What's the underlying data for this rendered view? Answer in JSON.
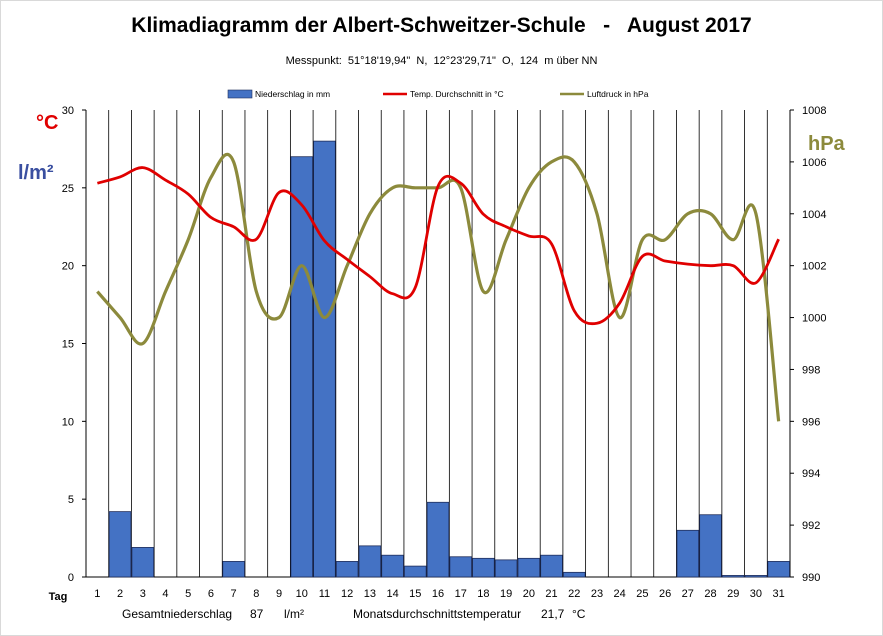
{
  "page": {
    "title": "Klimadiagramm der Albert-Schweitzer-Schule   -   August 2017",
    "subtitle": "Messpunkt:  51°18'19,94\"  N,  12°23'29,71\"  O,  124  m über NN",
    "unit_left_temp": "°C",
    "unit_left_precip": "l/m²",
    "unit_right": "hPa",
    "x_axis_label": "Tag",
    "footer_precip_label": "Gesamtniederschlag",
    "footer_precip_value": "87",
    "footer_precip_unit": "l/m²",
    "footer_temp_label": "Monatsdurchschnittstemperatur",
    "footer_temp_value": "21,7",
    "footer_temp_unit": "°C"
  },
  "colors": {
    "bars": "#4472c4",
    "temperature": "#e00000",
    "pressure": "#8c8a3c",
    "grid": "#000000"
  },
  "chart_data": {
    "type": "bar",
    "title": "Klimadiagramm der Albert-Schweitzer-Schule   -   August 2017",
    "xlabel": "Tag",
    "categories": [
      "1",
      "2",
      "3",
      "4",
      "5",
      "6",
      "7",
      "8",
      "9",
      "10",
      "11",
      "12",
      "13",
      "14",
      "15",
      "16",
      "17",
      "18",
      "19",
      "20",
      "21",
      "22",
      "23",
      "24",
      "25",
      "26",
      "27",
      "28",
      "29",
      "30",
      "31"
    ],
    "ylim_left": [
      0,
      30
    ],
    "yticks_left": [
      0,
      5,
      10,
      15,
      20,
      25,
      30
    ],
    "ylim_right": [
      990,
      1008
    ],
    "yticks_right": [
      990,
      992,
      994,
      996,
      998,
      1000,
      1002,
      1004,
      1006,
      1008
    ],
    "grid": "vertical gridlines",
    "legend_position": "top",
    "series": [
      {
        "name": "Niederschlag in mm",
        "kind": "bar",
        "axis": "left",
        "values": [
          0,
          4.2,
          1.9,
          0,
          0,
          0,
          1,
          0,
          0,
          27,
          28,
          1,
          2,
          1.4,
          0.7,
          4.8,
          1.3,
          1.2,
          1.1,
          1.2,
          1.4,
          0.3,
          0,
          0,
          0,
          0,
          3,
          4,
          0.1,
          0.1,
          1
        ]
      },
      {
        "name": "Temp. Durchschnitt in °C",
        "kind": "line",
        "axis": "left",
        "values": [
          25.3,
          25.7,
          26.3,
          25.5,
          24.6,
          23.1,
          22.5,
          21.7,
          24.7,
          23.9,
          21.6,
          20.4,
          19.3,
          18.2,
          18.6,
          25.1,
          25.3,
          23.3,
          22.5,
          21.9,
          21.4,
          17.1,
          16.3,
          17.6,
          20.6,
          20.3,
          20.1,
          20,
          20,
          18.9,
          21.7
        ]
      },
      {
        "name": "Luftdruck in hPa",
        "kind": "line",
        "axis": "right",
        "values": [
          1001,
          1000,
          999,
          1001,
          1003,
          1005.4,
          1006,
          1001,
          1000,
          1002,
          1000,
          1002,
          1004,
          1005,
          1005,
          1005,
          1005,
          1001,
          1003,
          1005,
          1006,
          1006,
          1004,
          1000,
          1003,
          1003,
          1004,
          1004,
          1003,
          1004,
          996
        ]
      }
    ]
  }
}
